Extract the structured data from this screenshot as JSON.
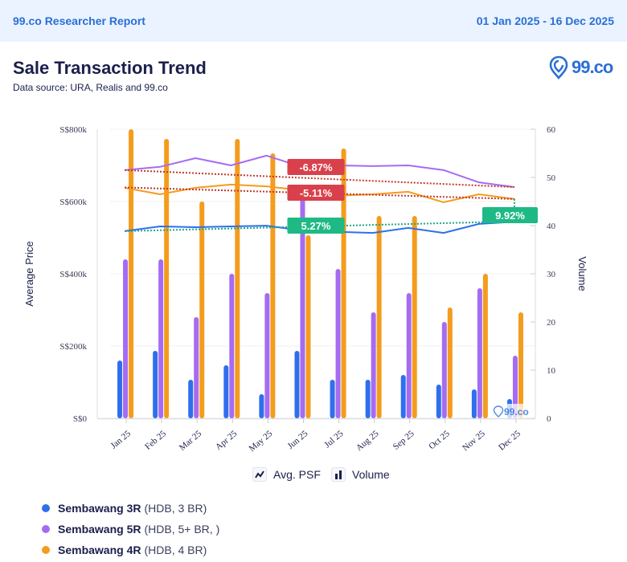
{
  "header": {
    "report_label": "99.co Researcher Report",
    "date_range": "01 Jan 2025 - 16 Dec 2025"
  },
  "page": {
    "title": "Sale Transaction Trend",
    "data_source": "Data source: URA, Realis and 99.co",
    "logo_text": "99.co",
    "watermark_text": "99.co"
  },
  "toggles": {
    "avg_psf_label": "Avg. PSF",
    "volume_label": "Volume"
  },
  "chart_data": {
    "type": "bar+line",
    "title": "Sale Transaction Trend",
    "categories": [
      "Jan 25",
      "Feb 25",
      "Mar 25",
      "Apr 25",
      "May 25",
      "Jun 25",
      "Jul 25",
      "Aug 25",
      "Sep 25",
      "Oct 25",
      "Nov 25",
      "Dec 25"
    ],
    "ylabel_left": "Average Price",
    "ylabel_right": "Volume",
    "ylim_left": [
      0,
      800000
    ],
    "ylim_right": [
      0,
      60
    ],
    "left_ticks": [
      {
        "value": 0,
        "label": "S$0"
      },
      {
        "value": 200000,
        "label": "S$200k"
      },
      {
        "value": 400000,
        "label": "S$400k"
      },
      {
        "value": 600000,
        "label": "S$600k"
      },
      {
        "value": 800000,
        "label": "S$800k"
      }
    ],
    "right_ticks": [
      {
        "value": 0,
        "label": "0"
      },
      {
        "value": 10,
        "label": "10"
      },
      {
        "value": 20,
        "label": "20"
      },
      {
        "value": 30,
        "label": "30"
      },
      {
        "value": 40,
        "label": "40"
      },
      {
        "value": 50,
        "label": "50"
      },
      {
        "value": 60,
        "label": "60"
      }
    ],
    "grid": true,
    "series": [
      {
        "name": "Sembawang 3R",
        "description": "(HDB, 3 BR)",
        "color": "#2f6fec",
        "volume": [
          12,
          14,
          8,
          11,
          5,
          14,
          8,
          8,
          9,
          7,
          6,
          4
        ],
        "avg_price": [
          518000,
          531000,
          529000,
          531000,
          533000,
          520000,
          516000,
          513000,
          527000,
          513000,
          538000,
          544000
        ],
        "trend_change_label": "5.27%",
        "trend_change_color": "#1fb985",
        "trend_line_color": "#1fa88a",
        "trend_start": 518000,
        "trend_end": 545000
      },
      {
        "name": "Sembawang 5R",
        "description": "(HDB, 5+ BR, )",
        "color": "#a56cf2",
        "volume": [
          33,
          33,
          21,
          30,
          26,
          48,
          31,
          22,
          26,
          20,
          27,
          13
        ],
        "avg_price": [
          687000,
          696000,
          720000,
          700000,
          727000,
          696000,
          700000,
          698000,
          700000,
          687000,
          653000,
          640000
        ],
        "trend_change_label": "-6.87%",
        "trend_change_color": "#d9404b",
        "trend_line_color": "#c0392b",
        "trend_start": 687000,
        "trend_end": 640000
      },
      {
        "name": "Sembawang 4R",
        "description": "(HDB, 4 BR)",
        "color": "#f49c1e",
        "volume": [
          60,
          58,
          45,
          58,
          55,
          38,
          56,
          42,
          42,
          23,
          30,
          22
        ],
        "avg_price": [
          638000,
          620000,
          638000,
          647000,
          642000,
          631000,
          616000,
          620000,
          627000,
          598000,
          620000,
          607000
        ],
        "trend_change_label": "-5.11%",
        "trend_change_color": "#d9404b",
        "trend_line_color": "#c0392b",
        "trend_start": 639000,
        "trend_end": 607000
      }
    ],
    "end_change_label": "9.92%",
    "end_change_color": "#1fb985",
    "legend": [
      "Sembawang 3R",
      "Sembawang 5R",
      "Sembawang 4R"
    ],
    "legend_position": "bottom-left"
  }
}
